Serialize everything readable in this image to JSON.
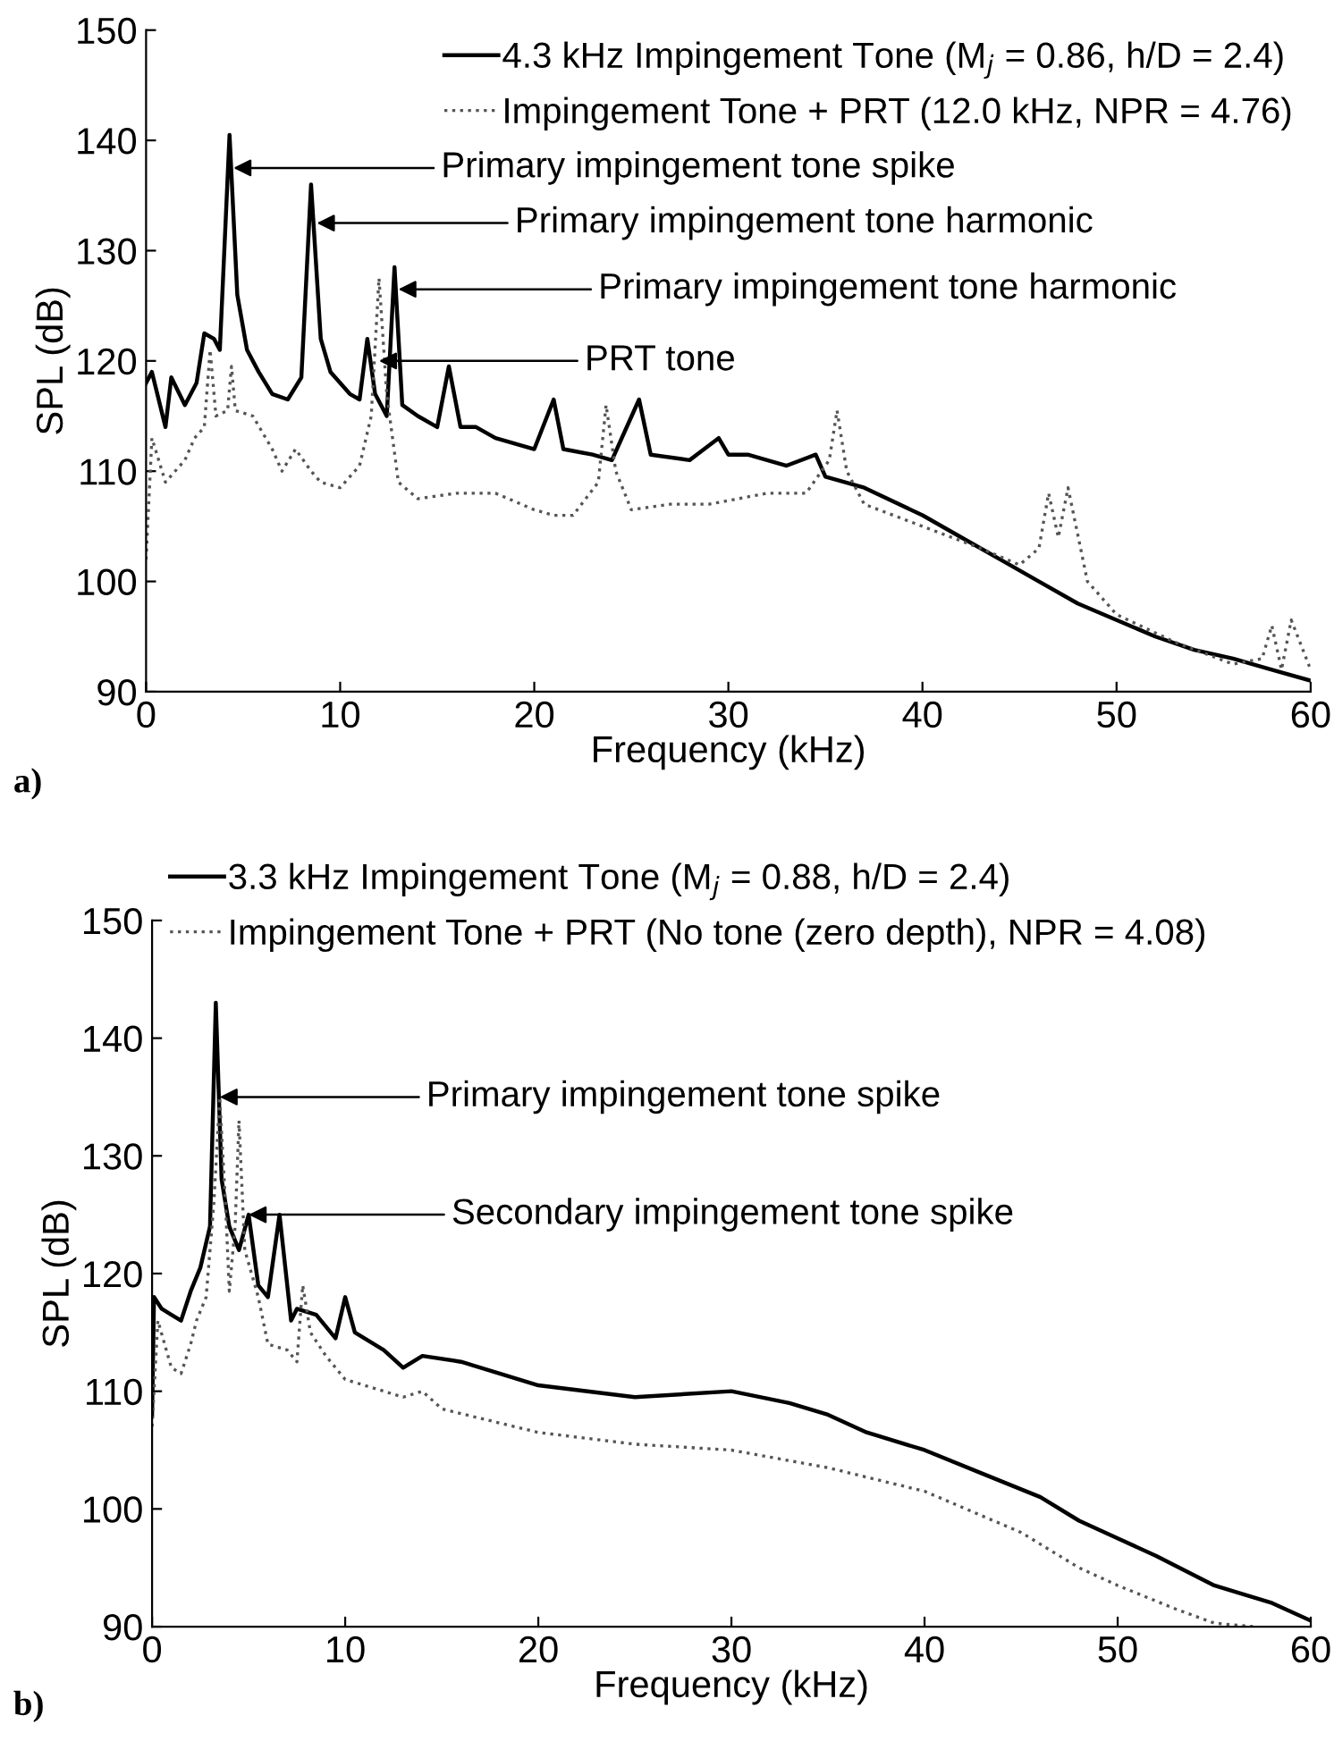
{
  "chart_data": [
    {
      "type": "line",
      "xlabel": "Frequency (kHz)",
      "ylabel": "SPL (dB)",
      "xlim": [
        0,
        60
      ],
      "ylim": [
        90,
        150
      ],
      "xticks": [
        0,
        10,
        20,
        30,
        40,
        50,
        60
      ],
      "yticks": [
        90,
        100,
        110,
        120,
        130,
        140,
        150
      ],
      "grid": false,
      "legend": "top right",
      "marker": "none",
      "annotations": [
        {
          "text": "Primary impingement tone spike",
          "x": 4.5,
          "y": 137.5
        },
        {
          "text": "Primary impingement tone harmonic",
          "x": 8.8,
          "y": 132.5
        },
        {
          "text": "Primary impingement tone harmonic",
          "x": 13,
          "y": 126.5
        },
        {
          "text": "PRT tone",
          "x": 12,
          "y": 120
        },
        "a)"
      ],
      "series": [
        {
          "name": "4.3 kHz Impingement Tone (M$_{j}$ = 0.86, h/D = 2.4)",
          "color": "#000000",
          "line_style": "solid",
          "x": [
            0,
            0.3,
            1,
            1.3,
            2,
            2.6,
            3,
            3.5,
            3.8,
            4.3,
            4.7,
            5.2,
            5.8,
            6.5,
            7.3,
            8,
            8.5,
            9,
            9.5,
            10.5,
            11,
            11.4,
            11.8,
            12.4,
            12.8,
            13.2,
            14,
            15,
            15.6,
            16.2,
            17,
            18,
            20,
            21,
            21.5,
            23,
            24,
            25.4,
            26,
            28,
            29.5,
            30,
            31,
            33,
            34.5,
            35,
            37,
            40,
            42,
            44,
            46,
            48,
            50,
            52,
            54,
            56,
            58,
            60
          ],
          "values": [
            118,
            119,
            114,
            118.5,
            116,
            118,
            122.5,
            122,
            121,
            140.5,
            126,
            121,
            119,
            117,
            116.5,
            118.5,
            136,
            122,
            119,
            117,
            116.5,
            122,
            117,
            115,
            128.5,
            116,
            115,
            114,
            119.5,
            114,
            114,
            113,
            112,
            116.5,
            112,
            111.5,
            111,
            116.5,
            111.5,
            111,
            113,
            111.5,
            111.5,
            110.5,
            111.5,
            109.5,
            108.5,
            106,
            104,
            102,
            100,
            98,
            96.5,
            95,
            93.8,
            93,
            92,
            91
          ]
        },
        {
          "name": "Impingement Tone + PRT (12.0 kHz, NPR = 4.76)",
          "color": "#555555",
          "line_style": "dotted",
          "x": [
            0,
            0.3,
            1,
            2,
            2.5,
            3,
            3.3,
            3.6,
            4.2,
            4.4,
            4.6,
            5.5,
            6.5,
            7,
            7.7,
            8.5,
            9,
            10,
            11,
            11.6,
            12,
            12.4,
            13,
            14,
            16,
            18,
            20,
            21,
            22,
            23.3,
            23.7,
            24.2,
            25,
            27,
            29,
            32,
            34,
            35.2,
            35.6,
            36.1,
            37,
            40,
            43,
            45,
            46,
            46.5,
            47,
            47.5,
            48.5,
            50,
            53,
            56,
            57.5,
            58,
            58.5,
            59,
            60
          ],
          "values": [
            102,
            113,
            109,
            111,
            113,
            114,
            121,
            115,
            115.5,
            119.5,
            115.5,
            115,
            112,
            110,
            112,
            110,
            109,
            108.5,
            110.5,
            115,
            127.5,
            117,
            109,
            107.5,
            108,
            108,
            106.5,
            106,
            106,
            109,
            116,
            110,
            106.5,
            107,
            107,
            108,
            108,
            111,
            115.5,
            110,
            107,
            105,
            103,
            101.5,
            103,
            108,
            104,
            108.5,
            100,
            97,
            94.5,
            92.5,
            93,
            96,
            92,
            96.5,
            92
          ]
        }
      ]
    },
    {
      "type": "line",
      "xlabel": "Frequency (kHz)",
      "ylabel": "SPL (dB)",
      "xlim": [
        0,
        60
      ],
      "ylim": [
        90,
        150
      ],
      "xticks": [
        0,
        10,
        20,
        30,
        40,
        50,
        60
      ],
      "yticks": [
        90,
        100,
        110,
        120,
        130,
        140,
        150
      ],
      "grid": false,
      "legend": "top",
      "marker": "none",
      "annotations": [
        {
          "text": "Primary impingement tone spike",
          "x": 3.5,
          "y": 135
        },
        {
          "text": "Secondary impingement tone spike",
          "x": 5,
          "y": 125
        },
        "b)"
      ],
      "series": [
        {
          "name": "3.3 kHz Impingement Tone (M$_{j}$ = 0.88, h/D = 2.4)",
          "color": "#000000",
          "line_style": "solid",
          "x": [
            0,
            0.1,
            0.5,
            1,
            1.5,
            2,
            2.5,
            3,
            3.3,
            3.6,
            4,
            4.5,
            5,
            5.5,
            6,
            6.6,
            7.2,
            7.5,
            8.5,
            9.5,
            10,
            10.5,
            12,
            13,
            14,
            16,
            18,
            20,
            25,
            30,
            33,
            35,
            37,
            40,
            43,
            46,
            48,
            50,
            52,
            55,
            58,
            60
          ],
          "values": [
            108,
            118,
            117,
            116.5,
            116,
            118.5,
            120.5,
            124,
            143,
            128,
            124,
            122,
            125,
            119,
            118,
            125,
            116,
            117,
            116.5,
            114.5,
            118,
            115,
            113.5,
            112,
            113,
            112.5,
            111.5,
            110.5,
            109.5,
            110,
            109,
            108,
            106.5,
            105,
            103,
            101,
            99,
            97.5,
            96,
            93.5,
            92,
            90.5
          ]
        },
        {
          "name": "Impingement Tone + PRT (No tone (zero depth), NPR = 4.08)",
          "color": "#555555",
          "line_style": "dotted",
          "x": [
            0,
            0.3,
            1,
            1.5,
            2,
            2.3,
            2.8,
            3.2,
            3.5,
            3.8,
            4,
            4.3,
            4.5,
            4.8,
            5.5,
            6,
            7,
            7.5,
            7.8,
            8.2,
            9,
            10,
            13,
            14,
            15,
            20,
            25,
            30,
            35,
            40,
            45,
            48,
            50,
            53,
            55,
            57
          ],
          "values": [
            107,
            116,
            112,
            111.5,
            114,
            116,
            118,
            126,
            135,
            126,
            118.5,
            124,
            133,
            122,
            118,
            114,
            113.5,
            112.5,
            119,
            115,
            113,
            111,
            109.5,
            110,
            108.5,
            106.5,
            105.5,
            105,
            103.5,
            101.5,
            98,
            95,
            93.5,
            91.5,
            90.3,
            90
          ]
        }
      ]
    }
  ]
}
